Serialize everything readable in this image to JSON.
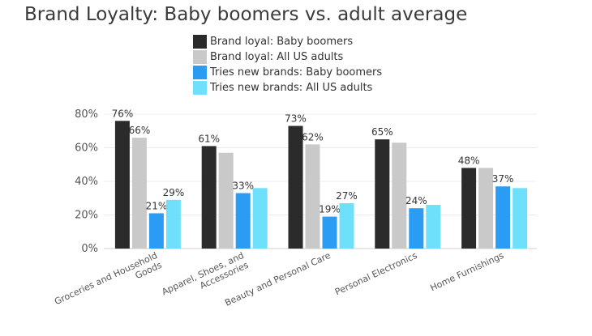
{
  "chart_data": {
    "type": "bar",
    "title": "Brand Loyalty: Baby boomers vs. adult average",
    "categories": [
      [
        "Groceries and Household",
        "Goods"
      ],
      [
        "Apparel, Shoes, and",
        "Accessories"
      ],
      [
        "Beauty and Personal Care"
      ],
      [
        "Personal Electronics"
      ],
      [
        "Home Furnishings"
      ]
    ],
    "series": [
      {
        "name": "Brand loyal: Baby boomers",
        "color": "#2b2b2b",
        "values": [
          76,
          61,
          73,
          65,
          48
        ],
        "labels": [
          "76%",
          "61%",
          "73%",
          "65%",
          "48%"
        ]
      },
      {
        "name": "Brand loyal: All US adults",
        "color": "#c9c9c9",
        "values": [
          66,
          57,
          62,
          63,
          48
        ],
        "labels": [
          "66%",
          "",
          "62%",
          "",
          ""
        ]
      },
      {
        "name": "Tries new brands: Baby boomers",
        "color": "#2a9cf3",
        "values": [
          21,
          33,
          19,
          24,
          37
        ],
        "labels": [
          "21%",
          "33%",
          "19%",
          "24%",
          "37%"
        ]
      },
      {
        "name": "Tries new brands: All US adults",
        "color": "#6ee0fb",
        "values": [
          29,
          36,
          27,
          26,
          36
        ],
        "labels": [
          "29%",
          "",
          "27%",
          "",
          ""
        ]
      }
    ],
    "yticks": [
      "0%",
      "20%",
      "40%",
      "60%",
      "80%"
    ],
    "ylim": [
      0,
      80
    ],
    "grid": true,
    "legend_position": "top-center"
  }
}
